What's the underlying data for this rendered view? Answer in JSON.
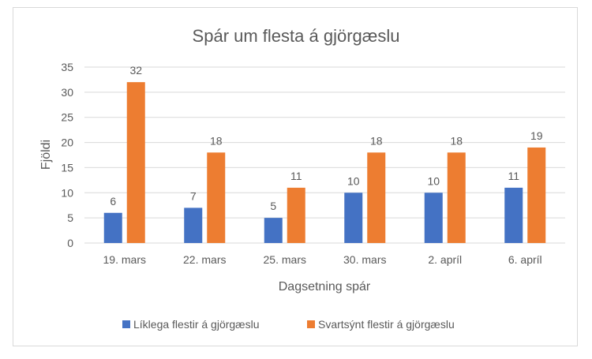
{
  "chart_data": {
    "type": "bar",
    "title": "Spár um flesta á gjörgæslu",
    "xlabel": "Dagsetning spár",
    "ylabel": "Fjöldi",
    "categories": [
      "19. mars",
      "22. mars",
      "25. mars",
      "30. mars",
      "2. apríl",
      "6. apríl"
    ],
    "series": [
      {
        "name": "Líklega flestir á gjörgæslu",
        "values": [
          6,
          7,
          5,
          10,
          10,
          11
        ],
        "color": "#4472C4"
      },
      {
        "name": "Svartsýnt flestir á gjörgæslu",
        "values": [
          32,
          18,
          11,
          18,
          18,
          19
        ],
        "color": "#ED7D31"
      }
    ],
    "ylim": [
      0,
      35
    ],
    "yticks": [
      0,
      5,
      10,
      15,
      20,
      25,
      30,
      35
    ],
    "grid": true,
    "data_labels": true,
    "legend": "bottom"
  }
}
